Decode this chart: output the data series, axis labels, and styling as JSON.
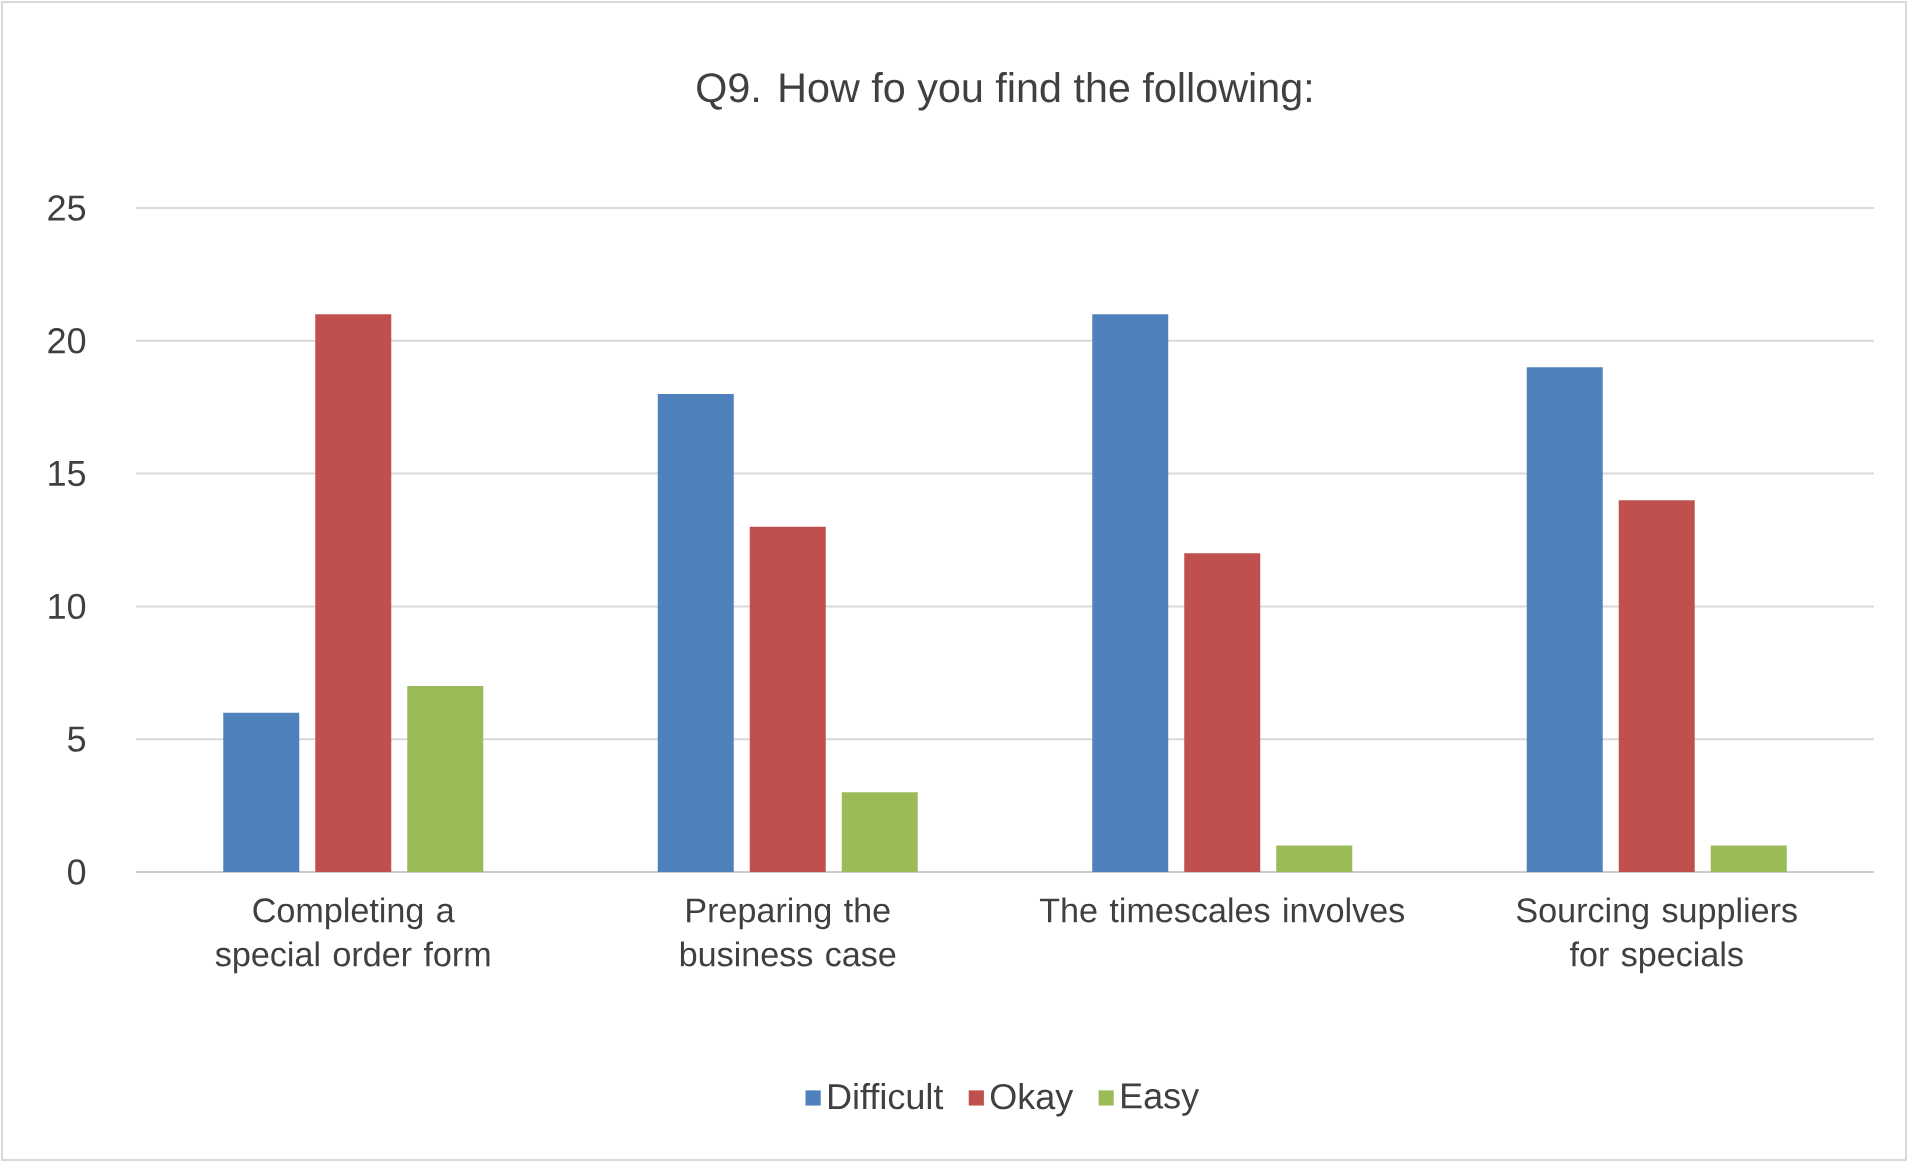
{
  "chart_data": {
    "type": "bar",
    "title": "Q9. How fo you find the following:",
    "categories": [
      "Completing a special order form",
      "Preparing the business case",
      "The timescales involves",
      "Sourcing suppliers for specials"
    ],
    "series": [
      {
        "name": "Difficult",
        "color": "#4f81bd",
        "values": [
          6,
          18,
          21,
          19
        ]
      },
      {
        "name": "Okay",
        "color": "#c0504d",
        "values": [
          21,
          13,
          12,
          14
        ]
      },
      {
        "name": "Easy",
        "color": "#9bbb59",
        "values": [
          7,
          3,
          1,
          1
        ]
      }
    ],
    "ylim": [
      0,
      25
    ],
    "yticks": [
      0,
      5,
      10,
      15,
      20,
      25
    ],
    "grid": "y",
    "legend": "bottom"
  }
}
